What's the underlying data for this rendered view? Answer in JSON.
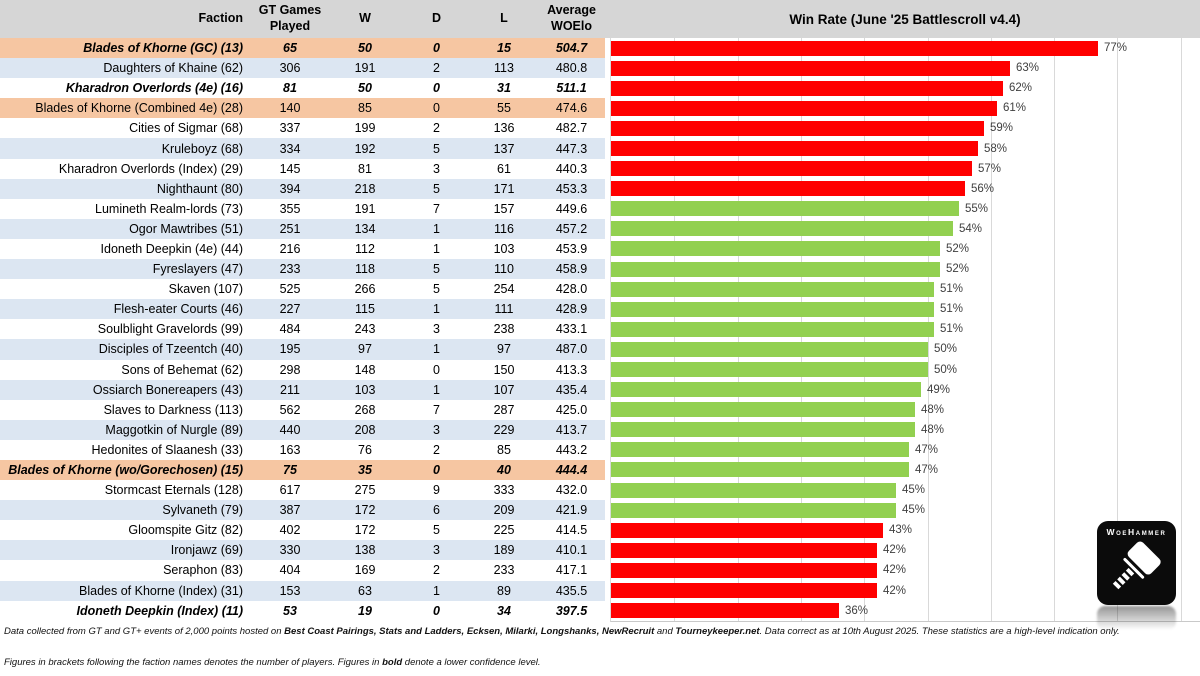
{
  "chart_data": {
    "type": "bar",
    "orientation": "horizontal",
    "title": "Win Rate (June '25 Battlescroll v4.4)",
    "categories": [
      "Blades of Khorne (GC) (13)",
      "Daughters of Khaine (62)",
      "Kharadron Overlords (4e) (16)",
      "Blades of Khorne (Combined 4e) (28)",
      "Cities of Sigmar (68)",
      "Kruleboyz (68)",
      "Kharadron Overlords (Index) (29)",
      "Nighthaunt (80)",
      "Lumineth Realm-lords (73)",
      "Ogor Mawtribes (51)",
      "Idoneth Deepkin (4e) (44)",
      "Fyreslayers (47)",
      "Skaven (107)",
      "Flesh-eater Courts (46)",
      "Soulblight Gravelords (99)",
      "Disciples of Tzeentch (40)",
      "Sons of Behemat (62)",
      "Ossiarch Bonereapers (43)",
      "Slaves to Darkness (113)",
      "Maggotkin of Nurgle (89)",
      "Hedonites of Slaanesh (33)",
      "Blades of Khorne (wo/Gorechosen) (15)",
      "Stormcast Eternals (128)",
      "Sylvaneth (79)",
      "Gloomspite Gitz (82)",
      "Ironjawz (69)",
      "Seraphon (83)",
      "Blades of Khorne (Index) (31)",
      "Idoneth Deepkin (Index) (11)"
    ],
    "values": [
      77,
      63,
      62,
      61,
      59,
      58,
      57,
      56,
      55,
      54,
      52,
      52,
      51,
      51,
      51,
      50,
      50,
      49,
      48,
      48,
      47,
      47,
      45,
      45,
      43,
      42,
      42,
      42,
      36
    ],
    "value_suffix": "%",
    "xlim": [
      0,
      100
    ],
    "gridlines_every_pct": 10,
    "grid": true,
    "legend": "none",
    "bar_color_rule": "red when above 55% or below 45%, green when 45-55%",
    "colors": {
      "red": "#ff0000",
      "green": "#92d050"
    }
  },
  "table": {
    "columns": [
      {
        "label": "Faction"
      },
      {
        "label": "GT Games\nPlayed"
      },
      {
        "label": "W"
      },
      {
        "label": "D"
      },
      {
        "label": "L"
      },
      {
        "label": "Average\nWOElo"
      }
    ]
  },
  "rows": [
    {
      "faction": "Blades of Khorne (GC) (13)",
      "games": "65",
      "w": "50",
      "d": "0",
      "l": "15",
      "woelo": "504.7",
      "win_rate": 77,
      "bar_color": "red",
      "row_style": "orange",
      "bold": true
    },
    {
      "faction": "Daughters of Khaine (62)",
      "games": "306",
      "w": "191",
      "d": "2",
      "l": "113",
      "woelo": "480.8",
      "win_rate": 63,
      "bar_color": "red",
      "row_style": "blue",
      "bold": false
    },
    {
      "faction": "Kharadron Overlords (4e) (16)",
      "games": "81",
      "w": "50",
      "d": "0",
      "l": "31",
      "woelo": "511.1",
      "win_rate": 62,
      "bar_color": "red",
      "row_style": "white",
      "bold": true
    },
    {
      "faction": "Blades of Khorne (Combined 4e) (28)",
      "games": "140",
      "w": "85",
      "d": "0",
      "l": "55",
      "woelo": "474.6",
      "win_rate": 61,
      "bar_color": "red",
      "row_style": "orange",
      "bold": false
    },
    {
      "faction": "Cities of Sigmar (68)",
      "games": "337",
      "w": "199",
      "d": "2",
      "l": "136",
      "woelo": "482.7",
      "win_rate": 59,
      "bar_color": "red",
      "row_style": "white",
      "bold": false
    },
    {
      "faction": "Kruleboyz (68)",
      "games": "334",
      "w": "192",
      "d": "5",
      "l": "137",
      "woelo": "447.3",
      "win_rate": 58,
      "bar_color": "red",
      "row_style": "blue",
      "bold": false
    },
    {
      "faction": "Kharadron Overlords (Index) (29)",
      "games": "145",
      "w": "81",
      "d": "3",
      "l": "61",
      "woelo": "440.3",
      "win_rate": 57,
      "bar_color": "red",
      "row_style": "white",
      "bold": false
    },
    {
      "faction": "Nighthaunt (80)",
      "games": "394",
      "w": "218",
      "d": "5",
      "l": "171",
      "woelo": "453.3",
      "win_rate": 56,
      "bar_color": "red",
      "row_style": "blue",
      "bold": false
    },
    {
      "faction": "Lumineth Realm-lords (73)",
      "games": "355",
      "w": "191",
      "d": "7",
      "l": "157",
      "woelo": "449.6",
      "win_rate": 55,
      "bar_color": "green",
      "row_style": "white",
      "bold": false
    },
    {
      "faction": "Ogor Mawtribes (51)",
      "games": "251",
      "w": "134",
      "d": "1",
      "l": "116",
      "woelo": "457.2",
      "win_rate": 54,
      "bar_color": "green",
      "row_style": "blue",
      "bold": false
    },
    {
      "faction": "Idoneth Deepkin (4e) (44)",
      "games": "216",
      "w": "112",
      "d": "1",
      "l": "103",
      "woelo": "453.9",
      "win_rate": 52,
      "bar_color": "green",
      "row_style": "white",
      "bold": false
    },
    {
      "faction": "Fyreslayers (47)",
      "games": "233",
      "w": "118",
      "d": "5",
      "l": "110",
      "woelo": "458.9",
      "win_rate": 52,
      "bar_color": "green",
      "row_style": "blue",
      "bold": false
    },
    {
      "faction": "Skaven (107)",
      "games": "525",
      "w": "266",
      "d": "5",
      "l": "254",
      "woelo": "428.0",
      "win_rate": 51,
      "bar_color": "green",
      "row_style": "white",
      "bold": false
    },
    {
      "faction": "Flesh-eater Courts (46)",
      "games": "227",
      "w": "115",
      "d": "1",
      "l": "111",
      "woelo": "428.9",
      "win_rate": 51,
      "bar_color": "green",
      "row_style": "blue",
      "bold": false
    },
    {
      "faction": "Soulblight Gravelords (99)",
      "games": "484",
      "w": "243",
      "d": "3",
      "l": "238",
      "woelo": "433.1",
      "win_rate": 51,
      "bar_color": "green",
      "row_style": "white",
      "bold": false
    },
    {
      "faction": "Disciples of Tzeentch (40)",
      "games": "195",
      "w": "97",
      "d": "1",
      "l": "97",
      "woelo": "487.0",
      "win_rate": 50,
      "bar_color": "green",
      "row_style": "blue",
      "bold": false
    },
    {
      "faction": "Sons of Behemat (62)",
      "games": "298",
      "w": "148",
      "d": "0",
      "l": "150",
      "woelo": "413.3",
      "win_rate": 50,
      "bar_color": "green",
      "row_style": "white",
      "bold": false
    },
    {
      "faction": "Ossiarch Bonereapers (43)",
      "games": "211",
      "w": "103",
      "d": "1",
      "l": "107",
      "woelo": "435.4",
      "win_rate": 49,
      "bar_color": "green",
      "row_style": "blue",
      "bold": false
    },
    {
      "faction": "Slaves to Darkness (113)",
      "games": "562",
      "w": "268",
      "d": "7",
      "l": "287",
      "woelo": "425.0",
      "win_rate": 48,
      "bar_color": "green",
      "row_style": "white",
      "bold": false
    },
    {
      "faction": "Maggotkin of Nurgle (89)",
      "games": "440",
      "w": "208",
      "d": "3",
      "l": "229",
      "woelo": "413.7",
      "win_rate": 48,
      "bar_color": "green",
      "row_style": "blue",
      "bold": false
    },
    {
      "faction": "Hedonites of Slaanesh (33)",
      "games": "163",
      "w": "76",
      "d": "2",
      "l": "85",
      "woelo": "443.2",
      "win_rate": 47,
      "bar_color": "green",
      "row_style": "white",
      "bold": false
    },
    {
      "faction": "Blades of Khorne (wo/Gorechosen) (15)",
      "games": "75",
      "w": "35",
      "d": "0",
      "l": "40",
      "woelo": "444.4",
      "win_rate": 47,
      "bar_color": "green",
      "row_style": "orange",
      "bold": true
    },
    {
      "faction": "Stormcast Eternals (128)",
      "games": "617",
      "w": "275",
      "d": "9",
      "l": "333",
      "woelo": "432.0",
      "win_rate": 45,
      "bar_color": "green",
      "row_style": "white",
      "bold": false
    },
    {
      "faction": "Sylvaneth (79)",
      "games": "387",
      "w": "172",
      "d": "6",
      "l": "209",
      "woelo": "421.9",
      "win_rate": 45,
      "bar_color": "green",
      "row_style": "blue",
      "bold": false
    },
    {
      "faction": "Gloomspite Gitz (82)",
      "games": "402",
      "w": "172",
      "d": "5",
      "l": "225",
      "woelo": "414.5",
      "win_rate": 43,
      "bar_color": "red",
      "row_style": "white",
      "bold": false
    },
    {
      "faction": "Ironjawz (69)",
      "games": "330",
      "w": "138",
      "d": "3",
      "l": "189",
      "woelo": "410.1",
      "win_rate": 42,
      "bar_color": "red",
      "row_style": "blue",
      "bold": false
    },
    {
      "faction": "Seraphon (83)",
      "games": "404",
      "w": "169",
      "d": "2",
      "l": "233",
      "woelo": "417.1",
      "win_rate": 42,
      "bar_color": "red",
      "row_style": "white",
      "bold": false
    },
    {
      "faction": "Blades of Khorne (Index) (31)",
      "games": "153",
      "w": "63",
      "d": "1",
      "l": "89",
      "woelo": "435.5",
      "win_rate": 42,
      "bar_color": "red",
      "row_style": "blue",
      "bold": false
    },
    {
      "faction": "Idoneth Deepkin (Index) (11)",
      "games": "53",
      "w": "19",
      "d": "0",
      "l": "34",
      "woelo": "397.5",
      "win_rate": 36,
      "bar_color": "red",
      "row_style": "white",
      "bold": true
    }
  ],
  "footnotes": [
    {
      "segments": [
        {
          "text": "Data collected from GT and GT+ events of 2,000 points hosted on ",
          "bold": false
        },
        {
          "text": "Best Coast Pairings, Stats and Ladders, Ecksen, Milarki, Longshanks, NewRecruit",
          "bold": true
        },
        {
          "text": " and ",
          "bold": false
        },
        {
          "text": "Tourneykeeper.net",
          "bold": true
        },
        {
          "text": ". Data correct as at 10th August 2025. These statistics are a high-level indication only.",
          "bold": false
        }
      ]
    },
    {
      "segments": [
        {
          "text": "Figures in brackets following the faction names denotes the number of players. Figures in ",
          "bold": false
        },
        {
          "text": "bold",
          "bold": true
        },
        {
          "text": " denote a lower confidence level.",
          "bold": false
        }
      ]
    }
  ],
  "logo": {
    "brand": "WoeHammer"
  },
  "colors": {
    "header_bg": "#d6d6d6",
    "row_orange": "#f6c6a2",
    "row_blue": "#dce6f2",
    "row_white": "#ffffff",
    "bar_red": "#ff0000",
    "bar_green": "#92d050",
    "gridline": "#d9d9d9"
  }
}
